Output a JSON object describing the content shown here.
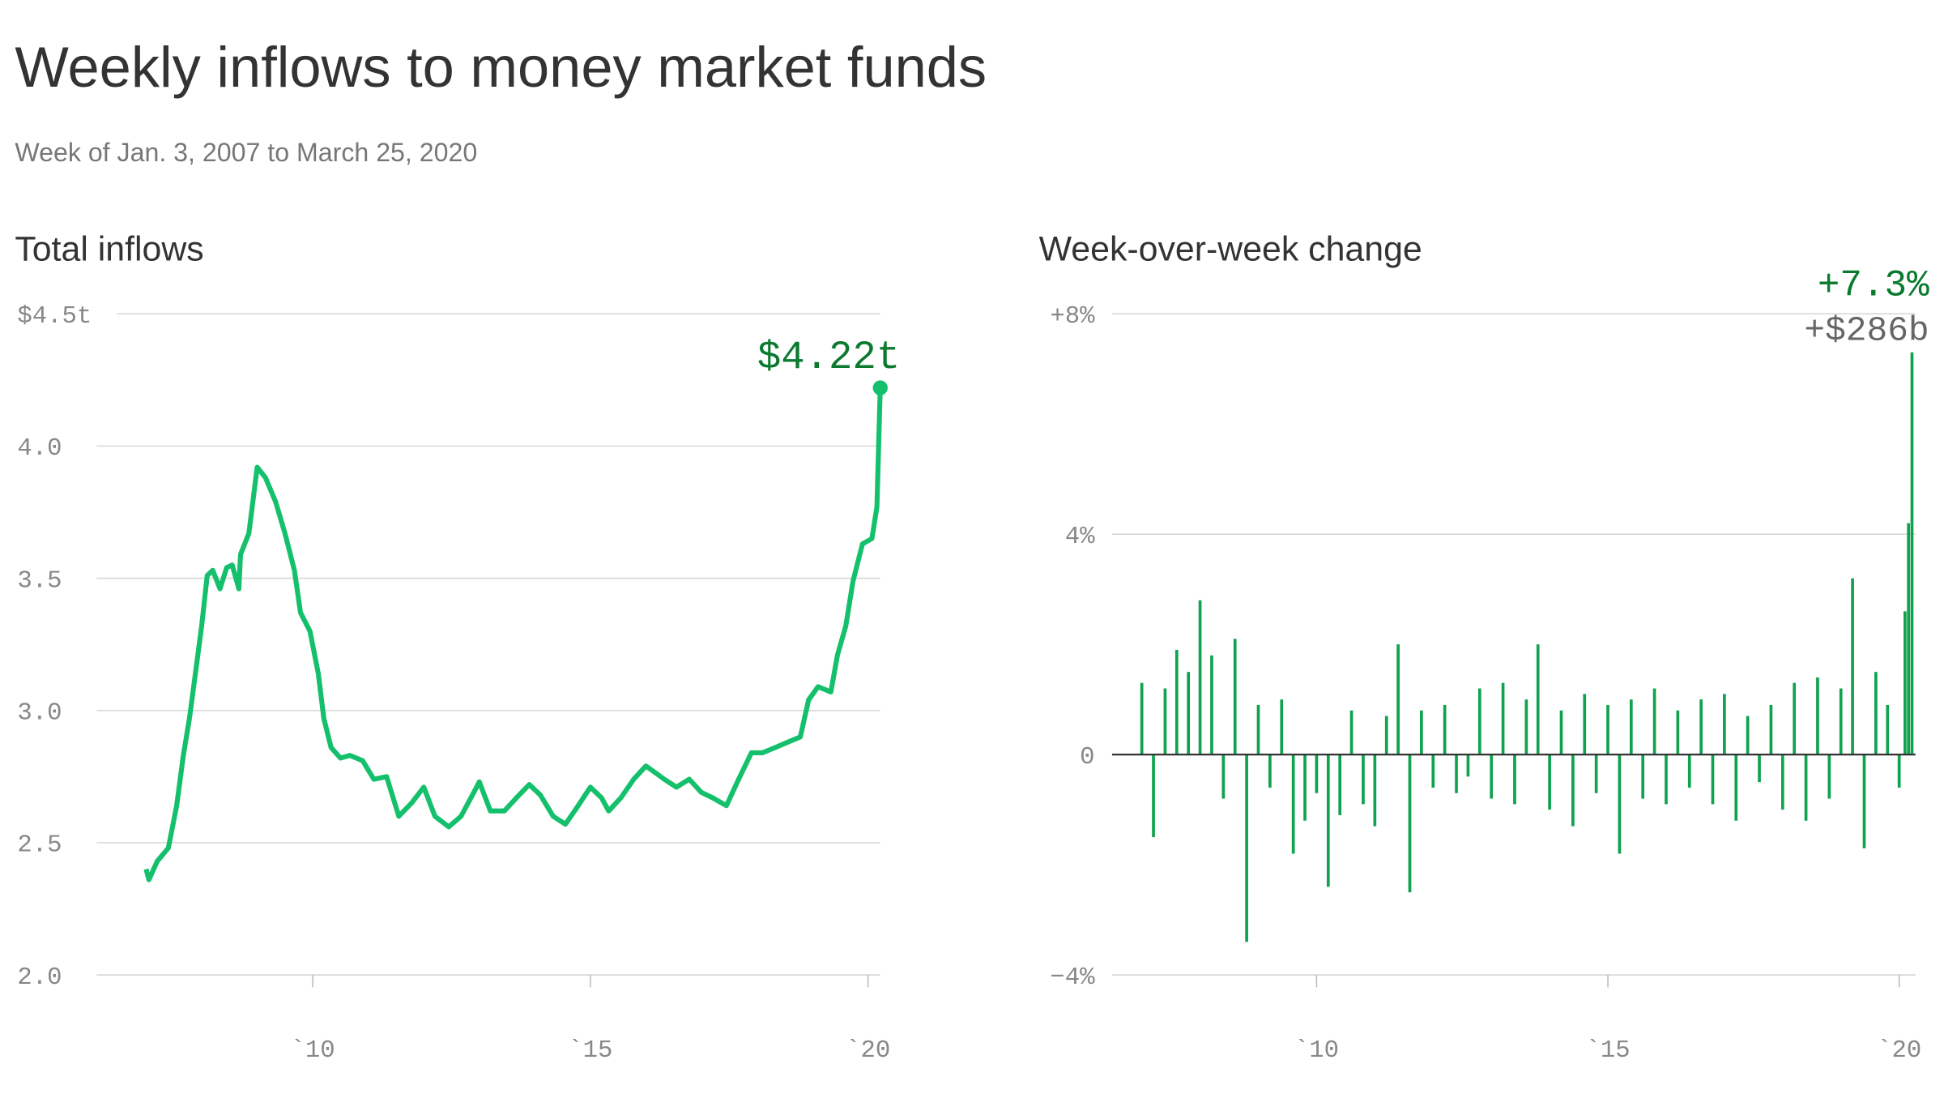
{
  "title": "Weekly inflows to money market funds",
  "subtitle": "Week of Jan. 3, 2007 to March 25, 2020",
  "chart_data": [
    {
      "type": "line",
      "title": "Total inflows",
      "color": "#14c06c",
      "x": [
        2007.0,
        2007.05,
        2007.2,
        2007.4,
        2007.55,
        2007.67,
        2007.78,
        2007.9,
        2008.0,
        2008.1,
        2008.2,
        2008.33,
        2008.45,
        2008.55,
        2008.67,
        2008.7,
        2008.85,
        2009.0,
        2009.15,
        2009.33,
        2009.5,
        2009.67,
        2009.78,
        2009.95,
        2010.1,
        2010.2,
        2010.33,
        2010.5,
        2010.67,
        2010.9,
        2011.1,
        2011.33,
        2011.55,
        2011.78,
        2012.0,
        2012.2,
        2012.45,
        2012.67,
        2012.9,
        2013.0,
        2013.2,
        2013.45,
        2013.67,
        2013.9,
        2014.1,
        2014.33,
        2014.55,
        2014.78,
        2015.0,
        2015.2,
        2015.33,
        2015.55,
        2015.78,
        2016.0,
        2016.2,
        2016.33,
        2016.55,
        2016.78,
        2017.0,
        2017.2,
        2017.45,
        2017.67,
        2017.9,
        2018.1,
        2018.33,
        2018.55,
        2018.78,
        2018.93,
        2019.1,
        2019.33,
        2019.45,
        2019.6,
        2019.73,
        2019.9,
        2020.07,
        2020.16,
        2020.22
      ],
      "values": [
        2.4,
        2.36,
        2.43,
        2.48,
        2.64,
        2.83,
        2.97,
        3.16,
        3.32,
        3.51,
        3.53,
        3.46,
        3.54,
        3.55,
        3.46,
        3.59,
        3.67,
        3.92,
        3.88,
        3.79,
        3.67,
        3.53,
        3.37,
        3.3,
        3.14,
        2.97,
        2.86,
        2.82,
        2.83,
        2.81,
        2.74,
        2.75,
        2.6,
        2.65,
        2.71,
        2.6,
        2.56,
        2.6,
        2.69,
        2.73,
        2.62,
        2.62,
        2.67,
        2.72,
        2.68,
        2.6,
        2.57,
        2.64,
        2.71,
        2.67,
        2.62,
        2.67,
        2.74,
        2.79,
        2.76,
        2.74,
        2.71,
        2.74,
        2.69,
        2.67,
        2.64,
        2.74,
        2.84,
        2.84,
        2.86,
        2.88,
        2.9,
        3.04,
        3.09,
        3.07,
        3.21,
        3.32,
        3.49,
        3.63,
        3.65,
        3.77,
        4.22
      ],
      "xlim": [
        2006.11,
        2020.22
      ],
      "xticks": [
        {
          "value": 2010,
          "label": "`10"
        },
        {
          "value": 2015,
          "label": "`15"
        },
        {
          "value": 2020,
          "label": "`20"
        }
      ],
      "ylim": [
        2.0,
        4.5
      ],
      "yticks": [
        {
          "value": 2,
          "label": "2.0"
        },
        2.5,
        {
          "value": 3,
          "label": "3.0"
        },
        3.5,
        {
          "value": 4,
          "label": "4.0"
        },
        {
          "value": 4.5,
          "label": "$4.5t"
        }
      ],
      "grid": true,
      "annotation": {
        "label": "$4.22t",
        "color": "#0b7a2f"
      }
    },
    {
      "type": "bar",
      "title": "Week-over-week change",
      "color": "#0fa24f",
      "x": [
        2007.0,
        2007.2,
        2007.4,
        2007.6,
        2007.8,
        2008.0,
        2008.2,
        2008.4,
        2008.6,
        2008.8,
        2009.0,
        2009.2,
        2009.4,
        2009.6,
        2009.8,
        2010.0,
        2010.2,
        2010.4,
        2010.6,
        2010.8,
        2011.0,
        2011.2,
        2011.4,
        2011.6,
        2011.8,
        2012.0,
        2012.2,
        2012.4,
        2012.6,
        2012.8,
        2013.0,
        2013.2,
        2013.4,
        2013.6,
        2013.8,
        2014.0,
        2014.2,
        2014.4,
        2014.6,
        2014.8,
        2015.0,
        2015.2,
        2015.4,
        2015.6,
        2015.8,
        2016.0,
        2016.2,
        2016.4,
        2016.6,
        2016.8,
        2017.0,
        2017.2,
        2017.4,
        2017.6,
        2017.8,
        2018.0,
        2018.2,
        2018.4,
        2018.6,
        2018.8,
        2019.0,
        2019.2,
        2019.4,
        2019.6,
        2019.8,
        2020.0,
        2020.1,
        2020.16,
        2020.22
      ],
      "values": [
        1.3,
        -1.5,
        1.2,
        1.9,
        1.5,
        2.8,
        1.8,
        -0.8,
        2.1,
        -3.4,
        0.9,
        -0.6,
        1.0,
        -1.8,
        -1.2,
        -0.7,
        -2.4,
        -1.1,
        0.8,
        -0.9,
        -1.3,
        0.7,
        2.0,
        -2.5,
        0.8,
        -0.6,
        0.9,
        -0.7,
        -0.4,
        1.2,
        -0.8,
        1.3,
        -0.9,
        1.0,
        2.0,
        -1.0,
        0.8,
        -1.3,
        1.1,
        -0.7,
        0.9,
        -1.8,
        1.0,
        -0.8,
        1.2,
        -0.9,
        0.8,
        -0.6,
        1.0,
        -0.9,
        1.1,
        -1.2,
        0.7,
        -0.5,
        0.9,
        -1.0,
        1.3,
        -1.2,
        1.4,
        -0.8,
        1.2,
        3.2,
        -1.7,
        1.5,
        0.9,
        -0.6,
        2.6,
        4.2,
        7.3
      ],
      "xlim": [
        2006.49,
        2020.28
      ],
      "xticks": [
        {
          "value": 2010,
          "label": "`10"
        },
        {
          "value": 2015,
          "label": "`15"
        },
        {
          "value": 2020,
          "label": "`20"
        }
      ],
      "ylim": [
        -4,
        8
      ],
      "yticks": [
        {
          "value": -4,
          "label": "−4%"
        },
        0,
        {
          "value": 4,
          "label": "4%"
        },
        {
          "value": 8,
          "label": "+8%"
        }
      ],
      "grid": true,
      "annotation": {
        "label": "+7.3%",
        "sublabel": "+$286b",
        "color": "#0b7a2f"
      }
    }
  ]
}
